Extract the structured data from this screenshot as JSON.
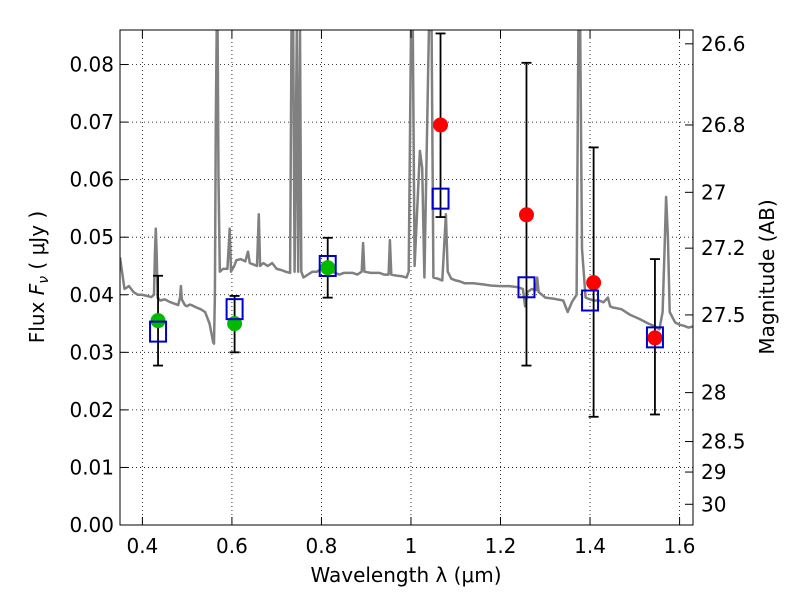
{
  "chart_data": {
    "type": "scatter",
    "title": "",
    "xlabel": "Wavelength  λ (μm)",
    "ylabel": "Flux  F_ν  ( μJy )",
    "ylabel_parts": {
      "text": "Flux  ",
      "symbol": "F",
      "sub": "ν",
      "unit": "  ( μJy )"
    },
    "y2label": "Magnitude (AB)",
    "xlim": [
      0.35,
      1.63
    ],
    "ylim": [
      0.0,
      0.086
    ],
    "grid": true,
    "x_ticks": [
      0.4,
      0.6,
      0.8,
      1.0,
      1.2,
      1.4,
      1.6
    ],
    "x_tick_labels": [
      "0.4",
      "0.6",
      "0.8",
      "1",
      "1.2",
      "1.4",
      "1.6"
    ],
    "y_ticks": [
      0.0,
      0.01,
      0.02,
      0.03,
      0.04,
      0.05,
      0.06,
      0.07,
      0.08
    ],
    "y_tick_labels": [
      "0.00",
      "0.01",
      "0.02",
      "0.03",
      "0.04",
      "0.05",
      "0.06",
      "0.07",
      "0.08"
    ],
    "y2_ticks": [
      {
        "label": "26.6",
        "flux": 0.0836
      },
      {
        "label": "26.8",
        "flux": 0.0695
      },
      {
        "label": "27",
        "flux": 0.0578
      },
      {
        "label": "27.2",
        "flux": 0.0481
      },
      {
        "label": "27.5",
        "flux": 0.0365
      },
      {
        "label": "28",
        "flux": 0.023
      },
      {
        "label": "28.5",
        "flux": 0.0145
      },
      {
        "label": "29",
        "flux": 0.0092
      },
      {
        "label": "30",
        "flux": 0.0036
      }
    ],
    "colors": {
      "model": "#808080",
      "observed_detection": "#00bb00",
      "observed_upper": "#ff0000",
      "model_box": "#0000cc",
      "error_bar": "#000000"
    },
    "series": [
      {
        "marker": "circle-green",
        "points": [
          {
            "x": 0.435,
            "y": 0.0355
          },
          {
            "x": 0.606,
            "y": 0.035
          },
          {
            "x": 0.814,
            "y": 0.0447
          }
        ]
      },
      {
        "marker": "circle-red",
        "points": [
          {
            "x": 1.066,
            "y": 0.0695
          },
          {
            "x": 1.258,
            "y": 0.0539
          },
          {
            "x": 1.408,
            "y": 0.0421
          },
          {
            "x": 1.545,
            "y": 0.0325
          }
        ]
      },
      {
        "marker": "square-blue",
        "points": [
          {
            "x": 0.435,
            "y": 0.0336
          },
          {
            "x": 0.606,
            "y": 0.0375
          },
          {
            "x": 0.814,
            "y": 0.045
          },
          {
            "x": 1.066,
            "y": 0.0567
          },
          {
            "x": 1.258,
            "y": 0.0413
          },
          {
            "x": 1.4,
            "y": 0.039
          },
          {
            "x": 1.545,
            "y": 0.0326
          }
        ]
      }
    ],
    "error_bars": [
      {
        "x": 0.435,
        "low": 0.0277,
        "high": 0.0433
      },
      {
        "x": 0.606,
        "low": 0.03,
        "high": 0.0398
      },
      {
        "x": 0.814,
        "low": 0.0395,
        "high": 0.0499
      },
      {
        "x": 1.066,
        "low": 0.0535,
        "high": 0.0854
      },
      {
        "x": 1.258,
        "low": 0.0277,
        "high": 0.0803
      },
      {
        "x": 1.408,
        "low": 0.0188,
        "high": 0.0656
      },
      {
        "x": 1.545,
        "low": 0.0192,
        "high": 0.0462
      }
    ],
    "model_spectrum": [
      [
        0.35,
        0.0465
      ],
      [
        0.36,
        0.041
      ],
      [
        0.37,
        0.0415
      ],
      [
        0.38,
        0.0405
      ],
      [
        0.39,
        0.04
      ],
      [
        0.4,
        0.04
      ],
      [
        0.41,
        0.0398
      ],
      [
        0.42,
        0.0396
      ],
      [
        0.426,
        0.04
      ],
      [
        0.428,
        0.047
      ],
      [
        0.43,
        0.0515
      ],
      [
        0.432,
        0.047
      ],
      [
        0.434,
        0.0395
      ],
      [
        0.44,
        0.039
      ],
      [
        0.45,
        0.0392
      ],
      [
        0.46,
        0.0388
      ],
      [
        0.47,
        0.0385
      ],
      [
        0.48,
        0.0382
      ],
      [
        0.484,
        0.0395
      ],
      [
        0.486,
        0.0415
      ],
      [
        0.488,
        0.0392
      ],
      [
        0.495,
        0.0382
      ],
      [
        0.5,
        0.038
      ],
      [
        0.505,
        0.0383
      ],
      [
        0.51,
        0.0382
      ],
      [
        0.52,
        0.0378
      ],
      [
        0.53,
        0.0375
      ],
      [
        0.54,
        0.037
      ],
      [
        0.55,
        0.035
      ],
      [
        0.555,
        0.033
      ],
      [
        0.558,
        0.0318
      ],
      [
        0.56,
        0.0315
      ],
      [
        0.562,
        0.04
      ],
      [
        0.564,
        0.07
      ],
      [
        0.566,
        0.086
      ],
      [
        0.568,
        0.086
      ],
      [
        0.57,
        0.06
      ],
      [
        0.573,
        0.044
      ],
      [
        0.58,
        0.0445
      ],
      [
        0.59,
        0.0445
      ],
      [
        0.595,
        0.0515
      ],
      [
        0.598,
        0.044
      ],
      [
        0.605,
        0.045
      ],
      [
        0.61,
        0.046
      ],
      [
        0.62,
        0.0462
      ],
      [
        0.63,
        0.0458
      ],
      [
        0.636,
        0.0475
      ],
      [
        0.64,
        0.0455
      ],
      [
        0.65,
        0.0452
      ],
      [
        0.656,
        0.045
      ],
      [
        0.66,
        0.054
      ],
      [
        0.663,
        0.045
      ],
      [
        0.67,
        0.0455
      ],
      [
        0.68,
        0.045
      ],
      [
        0.69,
        0.0455
      ],
      [
        0.7,
        0.0445
      ],
      [
        0.71,
        0.0443
      ],
      [
        0.72,
        0.044
      ],
      [
        0.73,
        0.0438
      ],
      [
        0.733,
        0.086
      ],
      [
        0.737,
        0.086
      ],
      [
        0.74,
        0.044
      ],
      [
        0.745,
        0.086
      ],
      [
        0.748,
        0.044
      ],
      [
        0.752,
        0.086
      ],
      [
        0.755,
        0.044
      ],
      [
        0.76,
        0.043
      ],
      [
        0.77,
        0.0435
      ],
      [
        0.78,
        0.044
      ],
      [
        0.79,
        0.044
      ],
      [
        0.8,
        0.0445
      ],
      [
        0.81,
        0.044
      ],
      [
        0.82,
        0.0442
      ],
      [
        0.83,
        0.0438
      ],
      [
        0.84,
        0.0435
      ],
      [
        0.85,
        0.0438
      ],
      [
        0.86,
        0.0438
      ],
      [
        0.87,
        0.0438
      ],
      [
        0.88,
        0.0435
      ],
      [
        0.89,
        0.044
      ],
      [
        0.893,
        0.049
      ],
      [
        0.896,
        0.044
      ],
      [
        0.91,
        0.0438
      ],
      [
        0.92,
        0.0438
      ],
      [
        0.93,
        0.0438
      ],
      [
        0.94,
        0.0435
      ],
      [
        0.95,
        0.0435
      ],
      [
        0.953,
        0.0495
      ],
      [
        0.956,
        0.0435
      ],
      [
        0.97,
        0.0433
      ],
      [
        0.98,
        0.0432
      ],
      [
        0.99,
        0.043
      ],
      [
        0.995,
        0.044
      ],
      [
        1.0,
        0.086
      ],
      [
        1.004,
        0.086
      ],
      [
        1.008,
        0.045
      ],
      [
        1.02,
        0.065
      ],
      [
        1.025,
        0.062
      ],
      [
        1.03,
        0.043
      ],
      [
        1.04,
        0.086
      ],
      [
        1.046,
        0.086
      ],
      [
        1.05,
        0.043
      ],
      [
        1.06,
        0.0428
      ],
      [
        1.07,
        0.0425
      ],
      [
        1.078,
        0.054
      ],
      [
        1.082,
        0.044
      ],
      [
        1.09,
        0.0428
      ],
      [
        1.1,
        0.0425
      ],
      [
        1.11,
        0.0423
      ],
      [
        1.12,
        0.042
      ],
      [
        1.14,
        0.042
      ],
      [
        1.16,
        0.0418
      ],
      [
        1.18,
        0.0416
      ],
      [
        1.2,
        0.0415
      ],
      [
        1.22,
        0.0415
      ],
      [
        1.24,
        0.0413
      ],
      [
        1.25,
        0.041
      ],
      [
        1.255,
        0.038
      ],
      [
        1.26,
        0.0405
      ],
      [
        1.27,
        0.041
      ],
      [
        1.28,
        0.0408
      ],
      [
        1.282,
        0.043
      ],
      [
        1.285,
        0.0405
      ],
      [
        1.3,
        0.0395
      ],
      [
        1.32,
        0.0393
      ],
      [
        1.34,
        0.039
      ],
      [
        1.35,
        0.037
      ],
      [
        1.36,
        0.0388
      ],
      [
        1.37,
        0.04
      ],
      [
        1.374,
        0.086
      ],
      [
        1.378,
        0.086
      ],
      [
        1.382,
        0.048
      ],
      [
        1.39,
        0.0395
      ],
      [
        1.4,
        0.0392
      ],
      [
        1.41,
        0.039
      ],
      [
        1.42,
        0.039
      ],
      [
        1.43,
        0.0387
      ],
      [
        1.44,
        0.0395
      ],
      [
        1.445,
        0.038
      ],
      [
        1.45,
        0.0378
      ],
      [
        1.47,
        0.0375
      ],
      [
        1.49,
        0.0365
      ],
      [
        1.51,
        0.0358
      ],
      [
        1.53,
        0.035
      ],
      [
        1.545,
        0.0345
      ],
      [
        1.555,
        0.034
      ],
      [
        1.562,
        0.037
      ],
      [
        1.566,
        0.047
      ],
      [
        1.57,
        0.057
      ],
      [
        1.574,
        0.05
      ],
      [
        1.578,
        0.037
      ],
      [
        1.59,
        0.0352
      ],
      [
        1.6,
        0.0348
      ],
      [
        1.61,
        0.0346
      ],
      [
        1.62,
        0.0343
      ],
      [
        1.63,
        0.0345
      ]
    ]
  }
}
